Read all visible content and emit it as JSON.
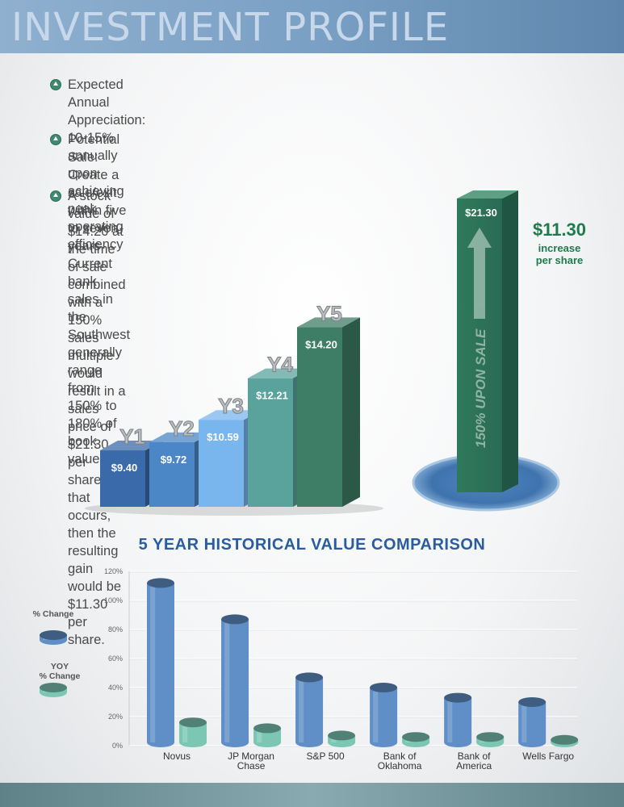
{
  "header": {
    "title": "INVESTMENT PROFILE"
  },
  "bullets": [
    {
      "line1": "Expected Annual Appreciation: 10-15% annually upon achieving peak",
      "line2": "operating efficiency"
    },
    {
      "line1": "Potential Sale:  Create a sale/exit within five to seven years. Current bank",
      "line2": "sales in the Southwest generally range from 150% to 180% of book value."
    },
    {
      "line1": "A stock value of $14.20 at the time of sale combined",
      "line2": "with a 150% sales multiple would result in a sales",
      "line3": "price of $21.30 per share.  If that occurs, then the",
      "line4": "resulting gain would be $11.30 per share."
    }
  ],
  "callout": {
    "amount": "$11.30",
    "line1": "increase",
    "line2": "per share"
  },
  "colors": {
    "accent_blue": "#2a5da0",
    "accent_green": "#1f7a4e",
    "bullet_icon": "#3f8a6e"
  },
  "icons": {
    "bullet": "triangle-circle-icon",
    "arrow": "up-arrow-icon"
  },
  "chart_data": [
    {
      "type": "bar",
      "categories": [
        "Y1",
        "Y2",
        "Y3",
        "Y4",
        "Y5"
      ],
      "values": [
        9.4,
        9.72,
        10.59,
        12.21,
        14.2
      ],
      "value_labels": [
        "$9.40",
        "$9.72",
        "$10.59",
        "$12.21",
        "$14.20"
      ],
      "sale_bar": {
        "value": 21.3,
        "label": "$21.30",
        "text": "150% UPON SALE"
      },
      "title": "",
      "xlabel": "",
      "ylabel": ""
    },
    {
      "type": "bar",
      "title": "5 YEAR HISTORICAL VALUE COMPARISON",
      "categories": [
        [
          "Novus"
        ],
        [
          "JP Morgan",
          "Chase"
        ],
        [
          "S&P 500"
        ],
        [
          "Bank of",
          "Oklahoma"
        ],
        [
          "Bank of",
          "America"
        ],
        [
          "Wells Fargo"
        ]
      ],
      "series": [
        {
          "name": "% Change",
          "values": [
            112,
            87,
            47,
            40,
            33,
            30
          ],
          "color": "#5f8fc6"
        },
        {
          "name": "YOY % Change",
          "values": [
            16,
            12,
            7,
            6,
            6,
            4
          ],
          "color": "#7cc7b4"
        }
      ],
      "legend_labels": [
        [
          "% Change"
        ],
        [
          "YOY",
          "% Change"
        ]
      ],
      "yticks": [
        "0%",
        "20%",
        "40%",
        "60%",
        "80%",
        "100%",
        "120%"
      ],
      "ylim": [
        0,
        120
      ],
      "grid": true,
      "legend_position": "left",
      "xlabel": "",
      "ylabel": ""
    }
  ]
}
